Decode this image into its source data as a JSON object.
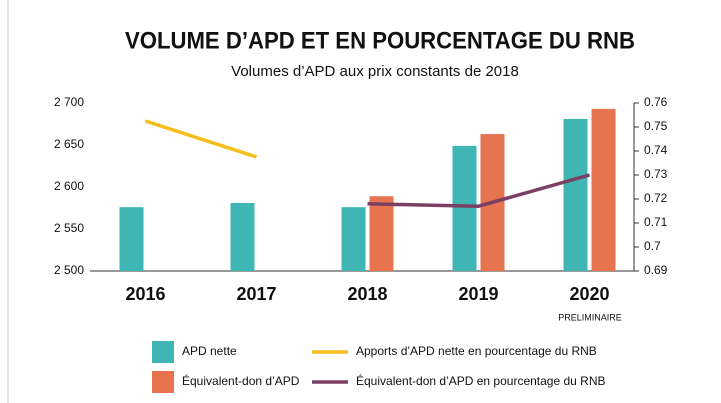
{
  "chart_data": {
    "type": "bar_line",
    "title": "VOLUME D’APD ET EN POURCENTAGE DU RNB",
    "subtitle": "Volumes d’APD aux prix constants de 2018",
    "categories": [
      "2016",
      "2017",
      "2018",
      "2019",
      "2020"
    ],
    "annotation": "PRELIMINAIRE",
    "series": [
      {
        "name": "APD nette",
        "color": "#3fb6b4",
        "kind": "bar",
        "values": [
          2576,
          2581,
          2576,
          2649,
          2681
        ]
      },
      {
        "name": "Équivalent-don d’APD",
        "color": "#e5744f",
        "kind": "bar",
        "values": [
          null,
          null,
          2589,
          2663,
          2693
        ]
      },
      {
        "name": "Apports d’APD nette en pourcentage du RNB",
        "color": "#f5be1c",
        "kind": "line",
        "axis": "y2",
        "values": [
          0.7525,
          0.7375,
          null,
          null,
          null
        ]
      },
      {
        "name": "Équivalent-don d’APD en pourcentage du RNB",
        "color": "#7b3f63",
        "kind": "line",
        "axis": "y2",
        "values": [
          null,
          null,
          0.718,
          0.717,
          0.73
        ]
      }
    ],
    "ylim": [
      2500,
      2700
    ],
    "yticks": [
      {
        "value": 2500,
        "label": "2 500"
      },
      {
        "value": 2550,
        "label": "2 550"
      },
      {
        "value": 2600,
        "label": "2 600"
      },
      {
        "value": 2650,
        "label": "2 650"
      },
      {
        "value": 2700,
        "label": "2 700"
      }
    ],
    "y2lim": [
      0.69,
      0.76
    ],
    "y2ticks": [
      0.69,
      0.7,
      0.71,
      0.72,
      0.73,
      0.74,
      0.75,
      0.76
    ]
  }
}
